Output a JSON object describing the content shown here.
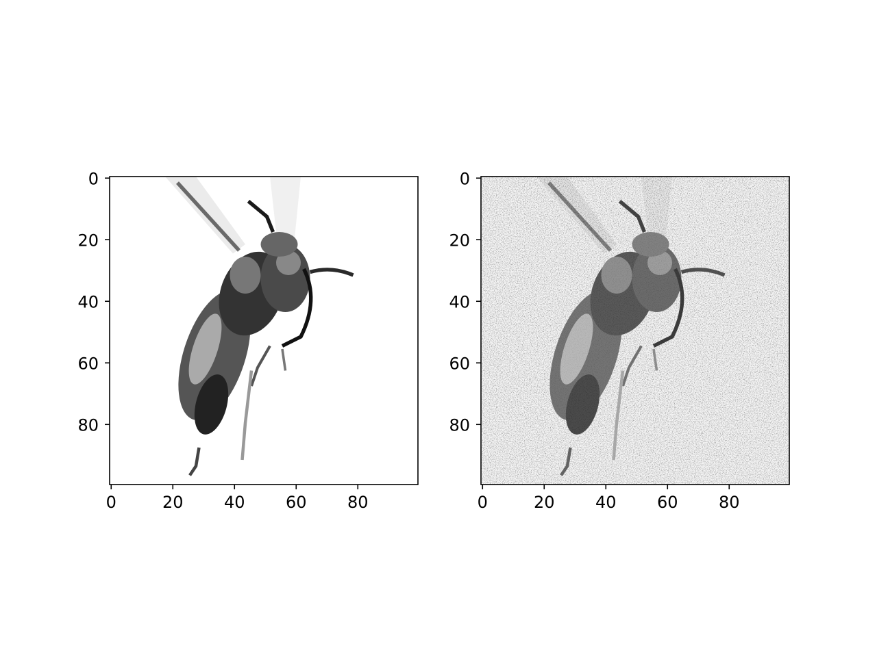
{
  "figure": {
    "background": "#ffffff",
    "panels": [
      {
        "id": "original",
        "description_free": true,
        "colormap": "gray_r",
        "x_ticks": [
          "0",
          "20",
          "40",
          "60",
          "80"
        ],
        "y_ticks": [
          "0",
          "20",
          "40",
          "60",
          "80"
        ],
        "noise": false
      },
      {
        "id": "noisy",
        "colormap": "gray_r",
        "x_ticks": [
          "0",
          "20",
          "40",
          "60",
          "80"
        ],
        "y_ticks": [
          "0",
          "20",
          "40",
          "60",
          "80"
        ],
        "noise": true
      }
    ]
  },
  "chart_data": [
    {
      "type": "heatmap",
      "image_shape": [
        100,
        100
      ],
      "xlim": [
        -0.5,
        99.5
      ],
      "ylim": [
        99.5,
        -0.5
      ],
      "xticks": [
        0,
        20,
        40,
        60,
        80
      ],
      "yticks": [
        0,
        20,
        40,
        60,
        80
      ],
      "colormap": "gray_r"
    },
    {
      "type": "heatmap",
      "image_shape": [
        100,
        100
      ],
      "xlim": [
        -0.5,
        99.5
      ],
      "ylim": [
        99.5,
        -0.5
      ],
      "xticks": [
        0,
        20,
        40,
        60,
        80
      ],
      "yticks": [
        0,
        20,
        40,
        60,
        80
      ],
      "colormap": "gray_r"
    }
  ]
}
